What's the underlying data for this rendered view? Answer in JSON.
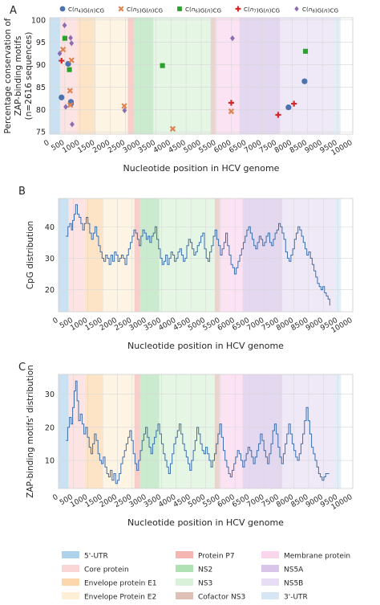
{
  "figure": {
    "width": 474,
    "height": 753
  },
  "regions": [
    {
      "name": "5'-UTR",
      "start": 0,
      "end": 340,
      "color": "#4c9bd1"
    },
    {
      "name": "Core protein",
      "start": 340,
      "end": 915,
      "color": "#f4a5a5"
    },
    {
      "name": "Envelope protein E1",
      "start": 915,
      "end": 1490,
      "color": "#f8a447"
    },
    {
      "name": "Envelope Protein E2",
      "start": 1490,
      "end": 2580,
      "color": "#fcd9a4"
    },
    {
      "name": "Protein P7",
      "start": 2580,
      "end": 2770,
      "color": "#e85a4f"
    },
    {
      "name": "NS2",
      "start": 2770,
      "end": 3420,
      "color": "#4fbd5a"
    },
    {
      "name": "NS3",
      "start": 3420,
      "end": 5310,
      "color": "#a8e0a8"
    },
    {
      "name": "Cofactor NS3",
      "start": 5310,
      "end": 5470,
      "color": "#b8735e"
    },
    {
      "name": "Membrane protein",
      "start": 5470,
      "end": 6260,
      "color": "#f5a3d6"
    },
    {
      "name": "NS5A",
      "start": 6260,
      "end": 7600,
      "color": "#a77fd1"
    },
    {
      "name": "NS5B",
      "start": 7600,
      "end": 9370,
      "color": "#c9b4e6"
    },
    {
      "name": "3'-UTR",
      "start": 9370,
      "end": 9600,
      "color": "#a6c8e6"
    }
  ],
  "charts": [
    {
      "panel_letter": "A",
      "type": "scatter",
      "xlabel": "Nucleotide position in HCV genome",
      "ylabel_lines": [
        "Percentage conservation of",
        "ZAP-binding motifs",
        "(n=2616 sequences)"
      ],
      "xlim": [
        0,
        10000
      ],
      "ylim": [
        74.5,
        100.5
      ],
      "xticks": [
        0,
        500,
        1000,
        1500,
        2000,
        2500,
        3000,
        3500,
        4000,
        4500,
        5000,
        5500,
        6000,
        6500,
        7000,
        7500,
        8000,
        8500,
        9000,
        9500,
        10000
      ],
      "xtick_labels": [
        "0",
        "500",
        "1000",
        "1500",
        "2000",
        "2500",
        "3000",
        "3500",
        "4000",
        "4500",
        "5000",
        "5500",
        "6000",
        "6500",
        "7000",
        "7500",
        "8000",
        "8500",
        "9000",
        "9500",
        "10000"
      ],
      "yticks": [
        75,
        80,
        85,
        90,
        95,
        100
      ],
      "ytick_labels": [
        "75",
        "80",
        "85",
        "90",
        "95",
        "100"
      ],
      "legend_position": "top",
      "series": [
        {
          "name": "C(n4)G(n)CG",
          "label_parts": [
            "C(",
            {
              "i": "n"
            },
            {
              "sub": "4"
            },
            ")G(",
            {
              "i": "n"
            },
            ")CG"
          ],
          "color": "#4c72b0",
          "marker": "circle",
          "points": [
            [
              390,
              82.7
            ],
            [
              610,
              90.2
            ],
            [
              700,
              81.7
            ],
            [
              700,
              81.3
            ],
            [
              7880,
              80.5
            ],
            [
              8410,
              86.3
            ]
          ]
        },
        {
          "name": "C(n5)G(n)CG",
          "label_parts": [
            "C(",
            {
              "i": "n"
            },
            {
              "sub": "5"
            },
            ")G(",
            {
              "i": "n"
            },
            ")CG"
          ],
          "color": "#dd8452",
          "marker": "x",
          "points": [
            [
              440,
              93.4
            ],
            [
              670,
              84.2
            ],
            [
              680,
              81.0
            ],
            [
              720,
              91.0
            ],
            [
              2460,
              80.8
            ],
            [
              4060,
              75.7
            ],
            [
              5990,
              79.6
            ]
          ]
        },
        {
          "name": "C(n6)G(n)CG",
          "label_parts": [
            "C(",
            {
              "i": "n"
            },
            {
              "sub": "6"
            },
            ")G(",
            {
              "i": "n"
            },
            ")CG"
          ],
          "color": "#2ca02c",
          "marker": "square",
          "points": [
            [
              500,
              95.9
            ],
            [
              650,
              88.9
            ],
            [
              3720,
              89.8
            ],
            [
              8440,
              93.0
            ]
          ]
        },
        {
          "name": "C(n7)G(n)CG",
          "label_parts": [
            "C(",
            {
              "i": "n"
            },
            {
              "sub": "7"
            },
            ")G(",
            {
              "i": "n"
            },
            ")CG"
          ],
          "color": "#d62728",
          "marker": "plus",
          "points": [
            [
              390,
              90.9
            ],
            [
              5990,
              81.5
            ],
            [
              7540,
              78.8
            ],
            [
              8060,
              81.3
            ]
          ]
        },
        {
          "name": "C(n8)G(n)CG",
          "label_parts": [
            "C(",
            {
              "i": "n"
            },
            {
              "sub": "8"
            },
            ")G(",
            {
              "i": "n"
            },
            ")CG"
          ],
          "color": "#8c6bb1",
          "marker": "diamond",
          "points": [
            [
              330,
              92.5
            ],
            [
              490,
              98.8
            ],
            [
              530,
              80.6
            ],
            [
              690,
              96.0
            ],
            [
              720,
              94.8
            ],
            [
              740,
              76.7
            ],
            [
              2470,
              79.8
            ],
            [
              6030,
              95.9
            ]
          ]
        }
      ]
    },
    {
      "panel_letter": "B",
      "type": "line",
      "xlabel": "Nucleotide position in HCV genome",
      "ylabel": "CpG distribution",
      "xlim": [
        0,
        10000
      ],
      "ylim": [
        13,
        49
      ],
      "xticks": [
        0,
        500,
        1000,
        1500,
        2000,
        2500,
        3000,
        3500,
        4000,
        4500,
        5000,
        5500,
        6000,
        6500,
        7000,
        7500,
        8000,
        8500,
        9000,
        9500,
        10000
      ],
      "xtick_labels": [
        "0",
        "500",
        "1000",
        "1500",
        "2000",
        "2500",
        "3000",
        "3500",
        "4000",
        "4500",
        "5000",
        "5500",
        "6000",
        "6500",
        "7000",
        "7500",
        "8000",
        "8500",
        "9000",
        "9500",
        "10000"
      ],
      "yticks": [
        20,
        30,
        40
      ],
      "ytick_labels": [
        "20",
        "30",
        "40"
      ],
      "line_color": "#3b6fb0",
      "x": [
        250,
        320,
        380,
        440,
        480,
        530,
        580,
        640,
        700,
        760,
        820,
        880,
        940,
        1000,
        1060,
        1120,
        1180,
        1240,
        1300,
        1360,
        1420,
        1480,
        1540,
        1600,
        1660,
        1720,
        1780,
        1840,
        1900,
        1960,
        2020,
        2080,
        2140,
        2200,
        2260,
        2320,
        2380,
        2440,
        2500,
        2560,
        2620,
        2680,
        2740,
        2800,
        2860,
        2920,
        2980,
        3040,
        3100,
        3160,
        3220,
        3280,
        3340,
        3400,
        3460,
        3520,
        3580,
        3640,
        3700,
        3760,
        3820,
        3880,
        3940,
        4000,
        4060,
        4120,
        4180,
        4240,
        4300,
        4360,
        4420,
        4480,
        4540,
        4600,
        4660,
        4720,
        4780,
        4840,
        4900,
        4960,
        5020,
        5080,
        5140,
        5200,
        5260,
        5320,
        5380,
        5440,
        5500,
        5560,
        5620,
        5680,
        5740,
        5800,
        5860,
        5920,
        5980,
        6040,
        6100,
        6160,
        6220,
        6280,
        6340,
        6400,
        6460,
        6520,
        6580,
        6640,
        6700,
        6760,
        6820,
        6880,
        6940,
        7000,
        7060,
        7120,
        7180,
        7240,
        7300,
        7360,
        7420,
        7480,
        7540,
        7600,
        7660,
        7720,
        7780,
        7840,
        7900,
        7960,
        8020,
        8080,
        8140,
        8200,
        8260,
        8320,
        8380,
        8440,
        8500,
        8560,
        8620,
        8680,
        8740,
        8800,
        8860,
        8920,
        8980,
        9040,
        9100,
        9160,
        9220
      ],
      "y": [
        37,
        40,
        41,
        39,
        42,
        44,
        47,
        44,
        43,
        41,
        39,
        41,
        43,
        41,
        38,
        36,
        38,
        40,
        37,
        34,
        32,
        30,
        29,
        31,
        30,
        28,
        31,
        29,
        32,
        31,
        29,
        30,
        31,
        30,
        28,
        31,
        33,
        35,
        37,
        39,
        38,
        36,
        34,
        37,
        39,
        38,
        36,
        37,
        35,
        37,
        38,
        40,
        36,
        33,
        30,
        28,
        29,
        31,
        28,
        30,
        32,
        31,
        29,
        30,
        32,
        33,
        31,
        29,
        30,
        34,
        36,
        35,
        33,
        31,
        32,
        34,
        35,
        37,
        38,
        33,
        30,
        29,
        32,
        34,
        37,
        39,
        36,
        34,
        31,
        33,
        35,
        38,
        34,
        31,
        28,
        27,
        25,
        27,
        29,
        31,
        33,
        35,
        37,
        39,
        40,
        38,
        36,
        34,
        33,
        35,
        37,
        36,
        34,
        35,
        37,
        38,
        35,
        34,
        36,
        38,
        39,
        41,
        40,
        38,
        36,
        32,
        30,
        29,
        31,
        33,
        36,
        38,
        40,
        39,
        37,
        35,
        33,
        31,
        32,
        30,
        28,
        26,
        24,
        22,
        21,
        20,
        21,
        19,
        18,
        17,
        15
      ]
    },
    {
      "panel_letter": "C",
      "type": "line",
      "xlabel": "Nucleotide position in HCV genome",
      "ylabel": "ZAP-binding motifs' distribution",
      "xlim": [
        0,
        10000
      ],
      "ylim": [
        1.5,
        36
      ],
      "xticks": [
        0,
        500,
        1000,
        1500,
        2000,
        2500,
        3000,
        3500,
        4000,
        4500,
        5000,
        5500,
        6000,
        6500,
        7000,
        7500,
        8000,
        8500,
        9000,
        9500,
        10000
      ],
      "xtick_labels": [
        "0",
        "500",
        "1000",
        "1500",
        "2000",
        "2500",
        "3000",
        "3500",
        "4000",
        "4500",
        "5000",
        "5500",
        "6000",
        "6500",
        "7000",
        "7500",
        "8000",
        "8500",
        "9000",
        "9500",
        "10000"
      ],
      "yticks": [
        10,
        20,
        30
      ],
      "ytick_labels": [
        "10",
        "20",
        "30"
      ],
      "line_color": "#3b6fb0",
      "x": [
        250,
        310,
        370,
        430,
        480,
        530,
        580,
        630,
        680,
        740,
        800,
        860,
        920,
        980,
        1040,
        1100,
        1160,
        1220,
        1280,
        1340,
        1400,
        1460,
        1520,
        1580,
        1640,
        1700,
        1760,
        1820,
        1880,
        1940,
        2000,
        2060,
        2120,
        2180,
        2240,
        2300,
        2360,
        2420,
        2480,
        2540,
        2600,
        2660,
        2720,
        2780,
        2840,
        2900,
        2960,
        3020,
        3080,
        3140,
        3200,
        3260,
        3320,
        3380,
        3440,
        3500,
        3560,
        3620,
        3680,
        3740,
        3800,
        3860,
        3920,
        3980,
        4040,
        4100,
        4160,
        4220,
        4280,
        4340,
        4400,
        4460,
        4520,
        4580,
        4640,
        4700,
        4760,
        4820,
        4880,
        4940,
        5000,
        5060,
        5120,
        5180,
        5240,
        5300,
        5360,
        5420,
        5480,
        5540,
        5600,
        5660,
        5720,
        5780,
        5840,
        5900,
        5960,
        6020,
        6080,
        6140,
        6200,
        6260,
        6320,
        6380,
        6440,
        6500,
        6560,
        6620,
        6680,
        6740,
        6800,
        6860,
        6920,
        6980,
        7040,
        7100,
        7160,
        7220,
        7280,
        7340,
        7400,
        7460,
        7520,
        7580,
        7640,
        7700,
        7760,
        7820,
        7880,
        7940,
        8000,
        8060,
        8120,
        8180,
        8240,
        8300,
        8360,
        8420,
        8480,
        8540,
        8600,
        8660,
        8720,
        8780,
        8840,
        8900,
        8960,
        9020,
        9080,
        9140,
        9200
      ],
      "y": [
        16,
        20,
        23,
        21,
        26,
        31,
        34,
        28,
        22,
        24,
        21,
        18,
        20,
        17,
        14,
        12,
        15,
        18,
        16,
        12,
        10,
        9,
        11,
        8,
        6,
        5,
        7,
        4,
        6,
        3,
        4,
        6,
        9,
        11,
        13,
        15,
        17,
        19,
        16,
        12,
        9,
        7,
        10,
        13,
        16,
        18,
        20,
        17,
        14,
        12,
        15,
        17,
        19,
        21,
        18,
        15,
        12,
        10,
        8,
        6,
        9,
        12,
        15,
        17,
        19,
        21,
        18,
        15,
        13,
        11,
        9,
        7,
        10,
        13,
        16,
        20,
        18,
        15,
        13,
        12,
        14,
        12,
        10,
        8,
        10,
        12,
        15,
        18,
        21,
        17,
        13,
        10,
        8,
        6,
        5,
        7,
        9,
        11,
        13,
        12,
        10,
        8,
        10,
        12,
        14,
        13,
        11,
        9,
        11,
        13,
        15,
        18,
        16,
        13,
        11,
        9,
        12,
        15,
        19,
        21,
        18,
        14,
        11,
        9,
        12,
        15,
        18,
        21,
        18,
        15,
        13,
        11,
        10,
        12,
        15,
        18,
        22,
        26,
        22,
        18,
        14,
        12,
        10,
        8,
        6,
        5,
        4,
        5,
        6,
        6,
        6
      ]
    }
  ]
}
